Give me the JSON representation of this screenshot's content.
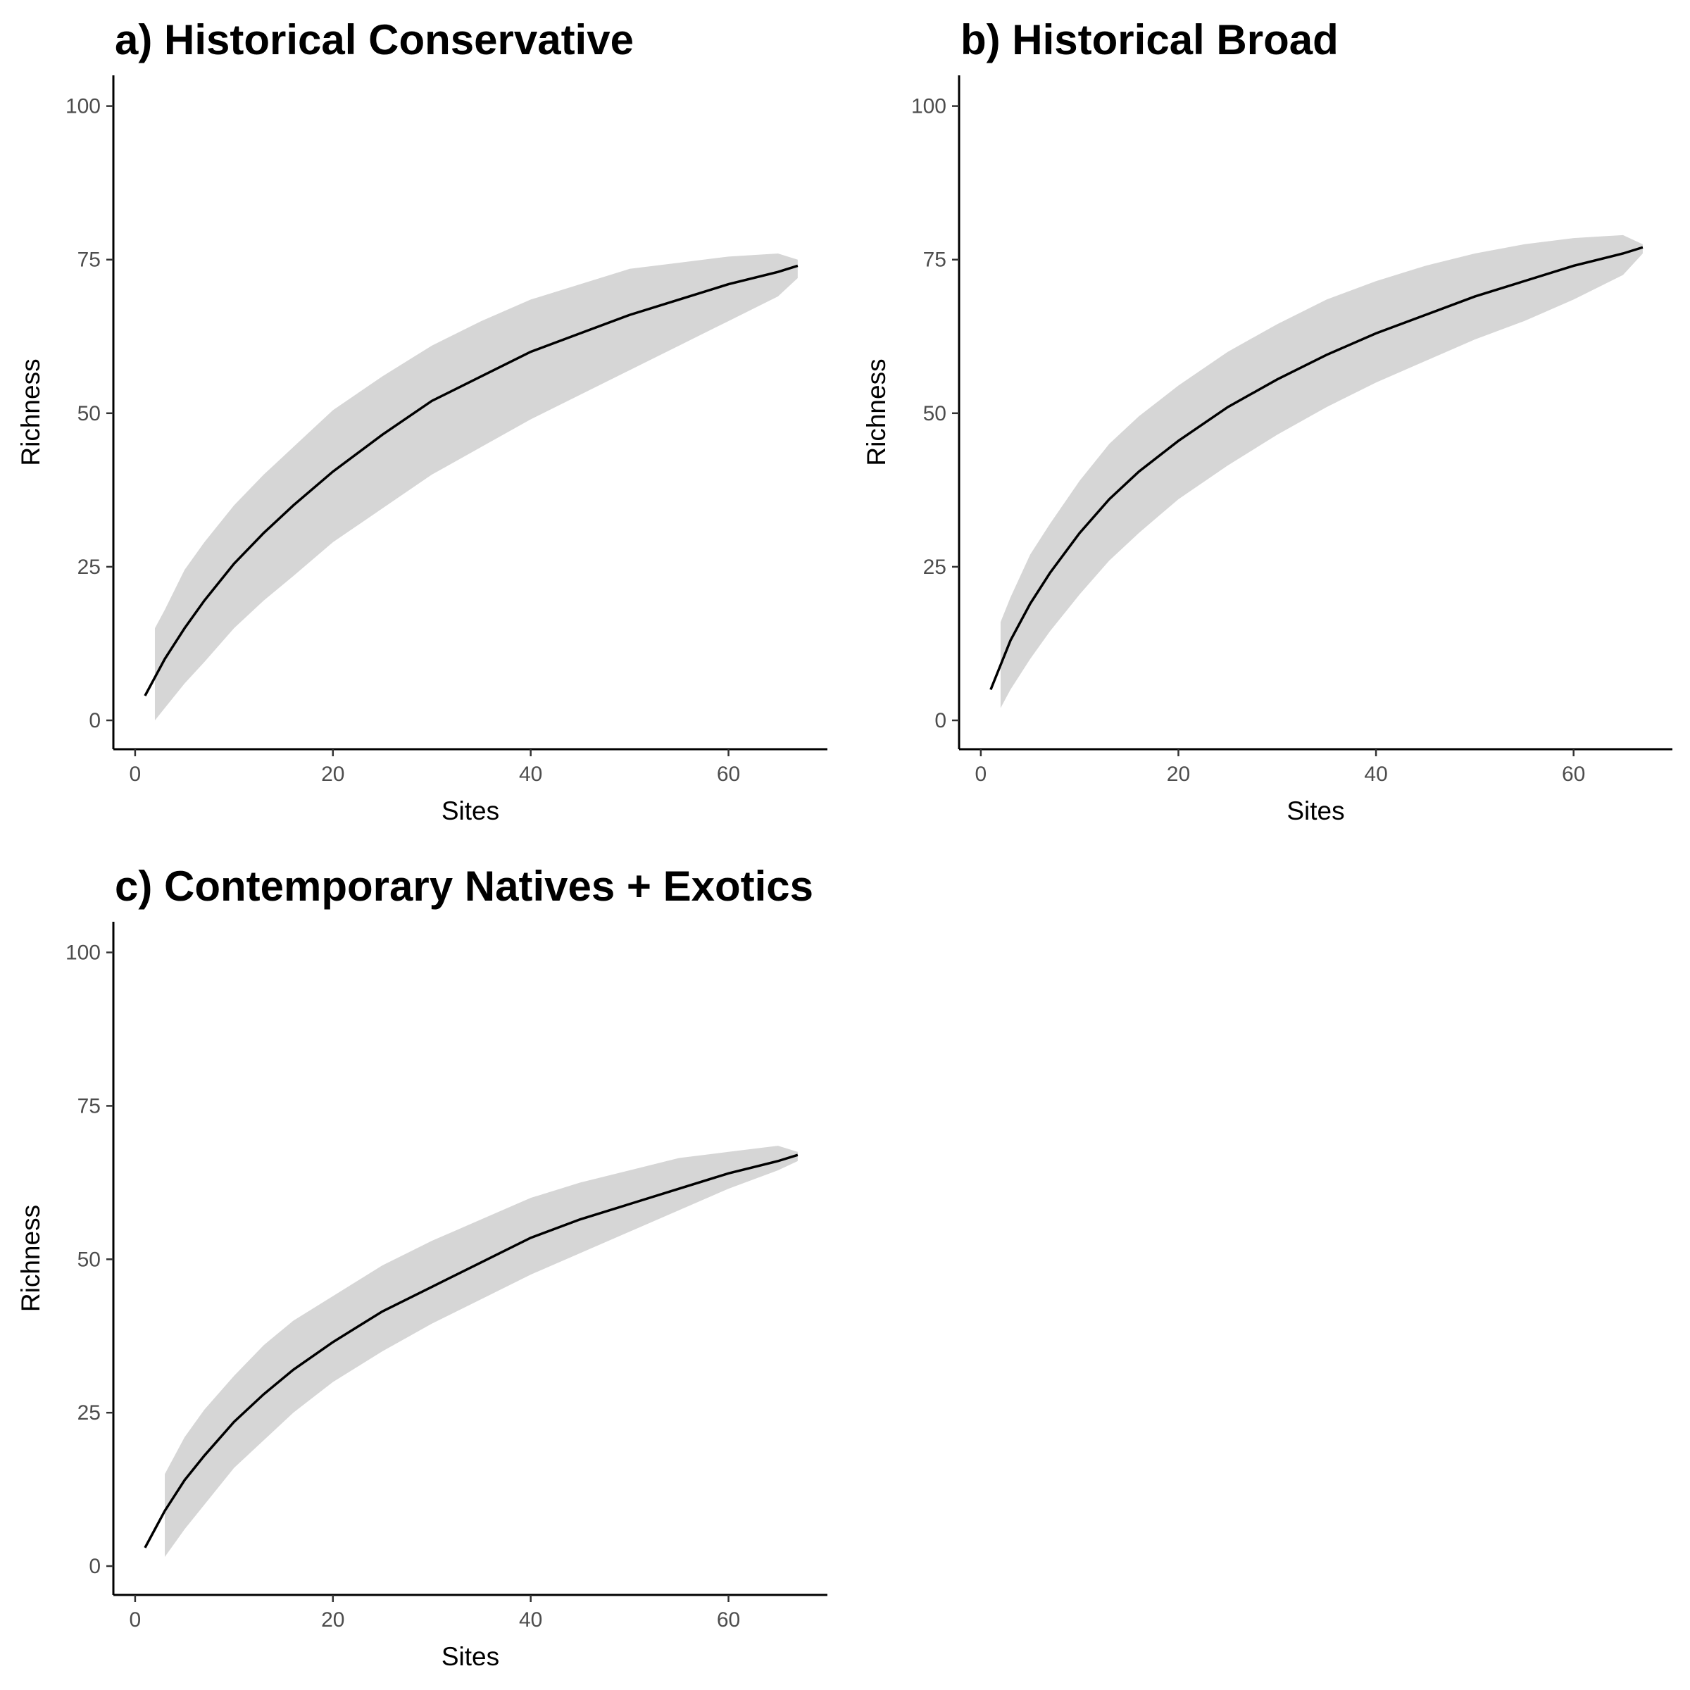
{
  "chart_data": [
    {
      "type": "line",
      "title": "a) Historical Conservative",
      "x_label": "Sites",
      "y_label": "Richness",
      "x": [
        1,
        2,
        3,
        5,
        7,
        10,
        13,
        16,
        20,
        25,
        30,
        35,
        40,
        45,
        50,
        55,
        60,
        65,
        67
      ],
      "values": [
        4,
        7,
        10,
        15,
        19.5,
        25.5,
        30.5,
        35,
        40.5,
        46.5,
        52,
        56,
        60,
        63,
        66,
        68.5,
        71,
        73,
        74
      ],
      "upper": [
        null,
        15,
        18,
        24.5,
        29,
        35,
        40,
        44.5,
        50.5,
        56,
        61,
        65,
        68.5,
        71,
        73.5,
        74.5,
        75.5,
        76,
        75
      ],
      "lower": [
        null,
        0,
        2,
        6,
        9.5,
        15,
        19.5,
        23.5,
        29,
        34.5,
        40,
        44.5,
        49,
        53,
        57,
        61,
        65,
        69,
        72
      ],
      "color": "#000000",
      "band_color": "#d6d6d6",
      "xlim": [
        -2.2,
        70
      ],
      "ylim": [
        -4.7,
        105
      ],
      "xticks": [
        0,
        20,
        40,
        60
      ],
      "yticks": [
        0,
        25,
        50,
        75,
        100
      ]
    },
    {
      "type": "line",
      "title": "b) Historical Broad",
      "x_label": "Sites",
      "y_label": "Richness",
      "x": [
        1,
        2,
        3,
        5,
        7,
        10,
        13,
        16,
        20,
        25,
        30,
        35,
        40,
        45,
        50,
        55,
        60,
        65,
        67
      ],
      "values": [
        5,
        9,
        13,
        19,
        24,
        30.5,
        36,
        40.5,
        45.5,
        51,
        55.5,
        59.5,
        63,
        66,
        69,
        71.5,
        74,
        76,
        77
      ],
      "upper": [
        null,
        16,
        20,
        27,
        32,
        39,
        45,
        49.5,
        54.5,
        60,
        64.5,
        68.5,
        71.5,
        74,
        76,
        77.5,
        78.5,
        79,
        77.5
      ],
      "lower": [
        null,
        2,
        5,
        10,
        14.5,
        20.5,
        26,
        30.5,
        36,
        41.5,
        46.5,
        51,
        55,
        58.5,
        62,
        65,
        68.5,
        72.5,
        76
      ],
      "color": "#000000",
      "band_color": "#d6d6d6",
      "xlim": [
        -2.2,
        70
      ],
      "ylim": [
        -4.7,
        105
      ],
      "xticks": [
        0,
        20,
        40,
        60
      ],
      "yticks": [
        0,
        25,
        50,
        75,
        100
      ]
    },
    {
      "type": "line",
      "title": "c) Contemporary Natives + Exotics",
      "x_label": "Sites",
      "y_label": "Richness",
      "x": [
        1,
        2,
        3,
        5,
        7,
        10,
        13,
        16,
        20,
        25,
        30,
        35,
        40,
        45,
        50,
        55,
        60,
        65,
        67
      ],
      "values": [
        3,
        6,
        9,
        14,
        18,
        23.5,
        28,
        32,
        36.5,
        41.5,
        45.5,
        49.5,
        53.5,
        56.5,
        59,
        61.5,
        64,
        66,
        67
      ],
      "upper": [
        null,
        null,
        15,
        21,
        25.5,
        31,
        36,
        40,
        44,
        49,
        53,
        56.5,
        60,
        62.5,
        64.5,
        66.5,
        67.5,
        68.5,
        67.5
      ],
      "lower": [
        null,
        null,
        1.5,
        6,
        10,
        16,
        20.5,
        25,
        30,
        35,
        39.5,
        43.5,
        47.5,
        51,
        54.5,
        58,
        61.5,
        64.5,
        66
      ],
      "color": "#000000",
      "band_color": "#d6d6d6",
      "xlim": [
        -2.2,
        70
      ],
      "ylim": [
        -4.7,
        105
      ],
      "xticks": [
        0,
        20,
        40,
        60
      ],
      "yticks": [
        0,
        25,
        50,
        75,
        100
      ]
    }
  ]
}
